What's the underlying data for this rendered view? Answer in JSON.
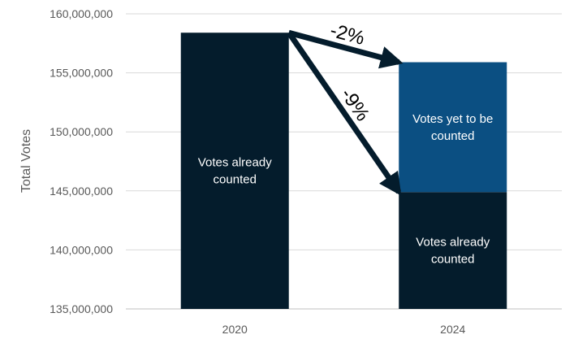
{
  "chart_data": {
    "type": "bar",
    "ylabel": "Total Votes",
    "ylim": [
      135000000,
      160000000
    ],
    "y_ticks": [
      "135,000,000",
      "140,000,000",
      "145,000,000",
      "150,000,000",
      "155,000,000",
      "160,000,000"
    ],
    "grid": true,
    "categories": [
      "2020",
      "2024"
    ],
    "bars": [
      {
        "category": "2020",
        "segments": [
          {
            "start": 135000000,
            "end": 158400000,
            "label": [
              "Votes already",
              "counted"
            ],
            "color": "#041C2C"
          }
        ]
      },
      {
        "category": "2024",
        "segments": [
          {
            "start": 135000000,
            "end": 144900000,
            "label": [
              "Votes already",
              "counted"
            ],
            "color": "#041C2C"
          },
          {
            "start": 144900000,
            "end": 155900000,
            "label": [
              "Votes yet to be",
              "counted"
            ],
            "color": "#0B4F82"
          }
        ]
      }
    ],
    "annotations": [
      {
        "text": "-2%",
        "from": {
          "category": "2020",
          "value": 158400000
        },
        "to": {
          "category": "2024",
          "value": 155900000
        }
      },
      {
        "text": "-9%",
        "from": {
          "category": "2020",
          "value": 158400000
        },
        "to": {
          "category": "2024",
          "value": 144900000
        }
      }
    ]
  }
}
